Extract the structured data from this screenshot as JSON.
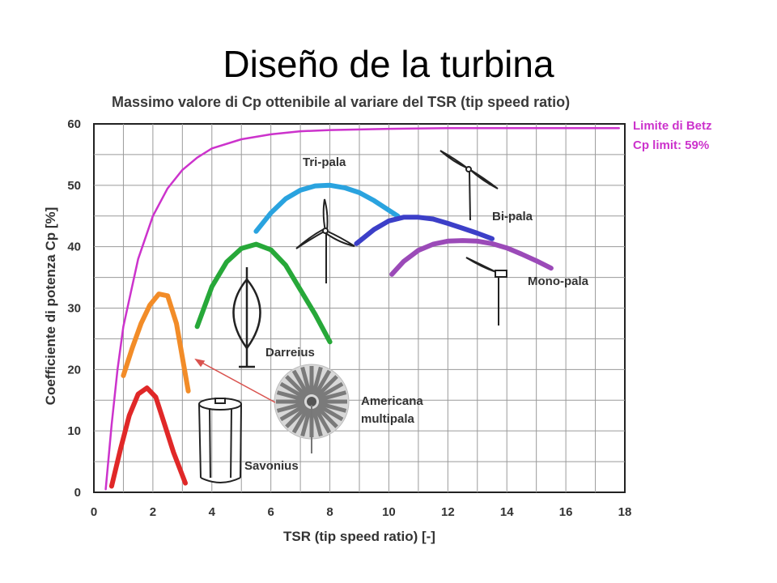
{
  "slide": {
    "title": "Diseño de la turbina"
  },
  "chart_data": {
    "type": "line",
    "title": "Massimo valore di Cp ottenibile al variare del TSR (tip speed ratio)",
    "xlabel": "TSR (tip speed ratio) [-]",
    "ylabel": "Coefficiente di potenza Cp [%]",
    "xlim": [
      0,
      18
    ],
    "ylim": [
      0,
      60
    ],
    "xticks": [
      0,
      2,
      4,
      6,
      8,
      10,
      12,
      14,
      16,
      18
    ],
    "yticks": [
      0,
      10,
      20,
      30,
      40,
      50,
      60
    ],
    "grid": true,
    "betz_annotation": [
      "Limite di Betz",
      "Cp limit: 59%"
    ],
    "series": [
      {
        "name": "Limite di Betz",
        "color": "#cc33cc",
        "x": [
          0.4,
          0.6,
          0.8,
          1.0,
          1.5,
          2.0,
          2.5,
          3.0,
          3.5,
          4.0,
          5.0,
          6.0,
          7.0,
          8.0,
          10.0,
          12.0,
          14.0,
          16.0,
          17.8
        ],
        "y": [
          0.5,
          11,
          20,
          27,
          38,
          45,
          49.5,
          52.5,
          54.5,
          56,
          57.5,
          58.3,
          58.8,
          59,
          59.2,
          59.3,
          59.3,
          59.3,
          59.3
        ]
      },
      {
        "name": "Tri-pala",
        "label": "Tri-pala",
        "color": "#2aa3df",
        "x": [
          5.5,
          6.0,
          6.5,
          7.0,
          7.5,
          8.0,
          8.5,
          9.0,
          9.5,
          10.3
        ],
        "y": [
          42.5,
          45.5,
          47.8,
          49.2,
          49.9,
          50,
          49.6,
          48.8,
          47.5,
          45
        ]
      },
      {
        "name": "Bi-pala",
        "label": "Bi-pala",
        "color": "#3c3fc8",
        "x": [
          8.9,
          9.5,
          10.0,
          10.5,
          11.0,
          11.5,
          12.0,
          12.5,
          13.0,
          13.5
        ],
        "y": [
          40.5,
          42.8,
          44.2,
          44.8,
          44.8,
          44.5,
          43.8,
          43,
          42.2,
          41.3
        ]
      },
      {
        "name": "Mono-pala",
        "label": "Mono-pala",
        "color": "#9b4ab8",
        "x": [
          10.1,
          10.5,
          11.0,
          11.5,
          12.0,
          12.5,
          13.0,
          13.5,
          14.0,
          14.5,
          15.0,
          15.5
        ],
        "y": [
          35.5,
          37.6,
          39.4,
          40.4,
          40.9,
          41,
          40.9,
          40.5,
          39.8,
          38.8,
          37.7,
          36.5
        ]
      },
      {
        "name": "Darreius",
        "label": "Darreius",
        "color": "#27a839",
        "x": [
          3.5,
          4.0,
          4.5,
          5.0,
          5.5,
          6.0,
          6.5,
          7.0,
          7.5,
          8.0
        ],
        "y": [
          27,
          33.5,
          37.5,
          39.7,
          40.4,
          39.5,
          37,
          33,
          29,
          24.5
        ]
      },
      {
        "name": "Americana multipala",
        "label": "Americana\nmultipala",
        "color": "#f28c28",
        "x": [
          1.0,
          1.3,
          1.6,
          1.9,
          2.2,
          2.5,
          2.8,
          3.0,
          3.2
        ],
        "y": [
          19,
          23.5,
          27.5,
          30.5,
          32.3,
          32,
          27.5,
          22,
          16.5
        ]
      },
      {
        "name": "Savonius",
        "label": "Savonius",
        "color": "#e02828",
        "x": [
          0.6,
          0.9,
          1.2,
          1.5,
          1.8,
          2.1,
          2.4,
          2.7,
          3.1
        ],
        "y": [
          1,
          7,
          12.5,
          16,
          17,
          15.5,
          11,
          6.5,
          1.5
        ]
      }
    ]
  }
}
